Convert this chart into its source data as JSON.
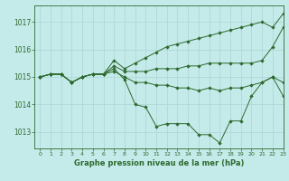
{
  "title": "Graphe pression niveau de la mer (hPa)",
  "background_color": "#c5eaea",
  "grid_color": "#b0d8d8",
  "line_color": "#2d6a2d",
  "marker_color": "#2d6a2d",
  "xlim": [
    -0.5,
    23
  ],
  "ylim": [
    1012.4,
    1017.6
  ],
  "yticks": [
    1013,
    1014,
    1015,
    1016,
    1017
  ],
  "xticks": [
    0,
    1,
    2,
    3,
    4,
    5,
    6,
    7,
    8,
    9,
    10,
    11,
    12,
    13,
    14,
    15,
    16,
    17,
    18,
    19,
    20,
    21,
    22,
    23
  ],
  "series": [
    [
      1015.0,
      1015.1,
      1015.1,
      1014.8,
      1015.0,
      1015.1,
      1015.1,
      1015.6,
      1015.3,
      1015.5,
      1015.7,
      1015.9,
      1016.1,
      1016.2,
      1016.3,
      1016.4,
      1016.5,
      1016.6,
      1016.7,
      1016.8,
      1016.9,
      1017.0,
      1016.8,
      1017.3
    ],
    [
      1015.0,
      1015.1,
      1015.1,
      1014.8,
      1015.0,
      1015.1,
      1015.1,
      1015.4,
      1015.2,
      1015.2,
      1015.2,
      1015.3,
      1015.3,
      1015.3,
      1015.4,
      1015.4,
      1015.5,
      1015.5,
      1015.5,
      1015.5,
      1015.5,
      1015.6,
      1016.1,
      1016.8
    ],
    [
      1015.0,
      1015.1,
      1015.1,
      1014.8,
      1015.0,
      1015.1,
      1015.1,
      1015.2,
      1015.0,
      1014.8,
      1014.8,
      1014.7,
      1014.7,
      1014.6,
      1014.6,
      1014.5,
      1014.6,
      1014.5,
      1014.6,
      1014.6,
      1014.7,
      1014.8,
      1015.0,
      1014.8
    ],
    [
      1015.0,
      1015.1,
      1015.1,
      1014.8,
      1015.0,
      1015.1,
      1015.1,
      1015.3,
      1014.9,
      1014.0,
      1013.9,
      1013.2,
      1013.3,
      1013.3,
      1013.3,
      1012.9,
      1012.9,
      1012.6,
      1013.4,
      1013.4,
      1014.3,
      1014.8,
      1015.0,
      1014.3
    ]
  ]
}
